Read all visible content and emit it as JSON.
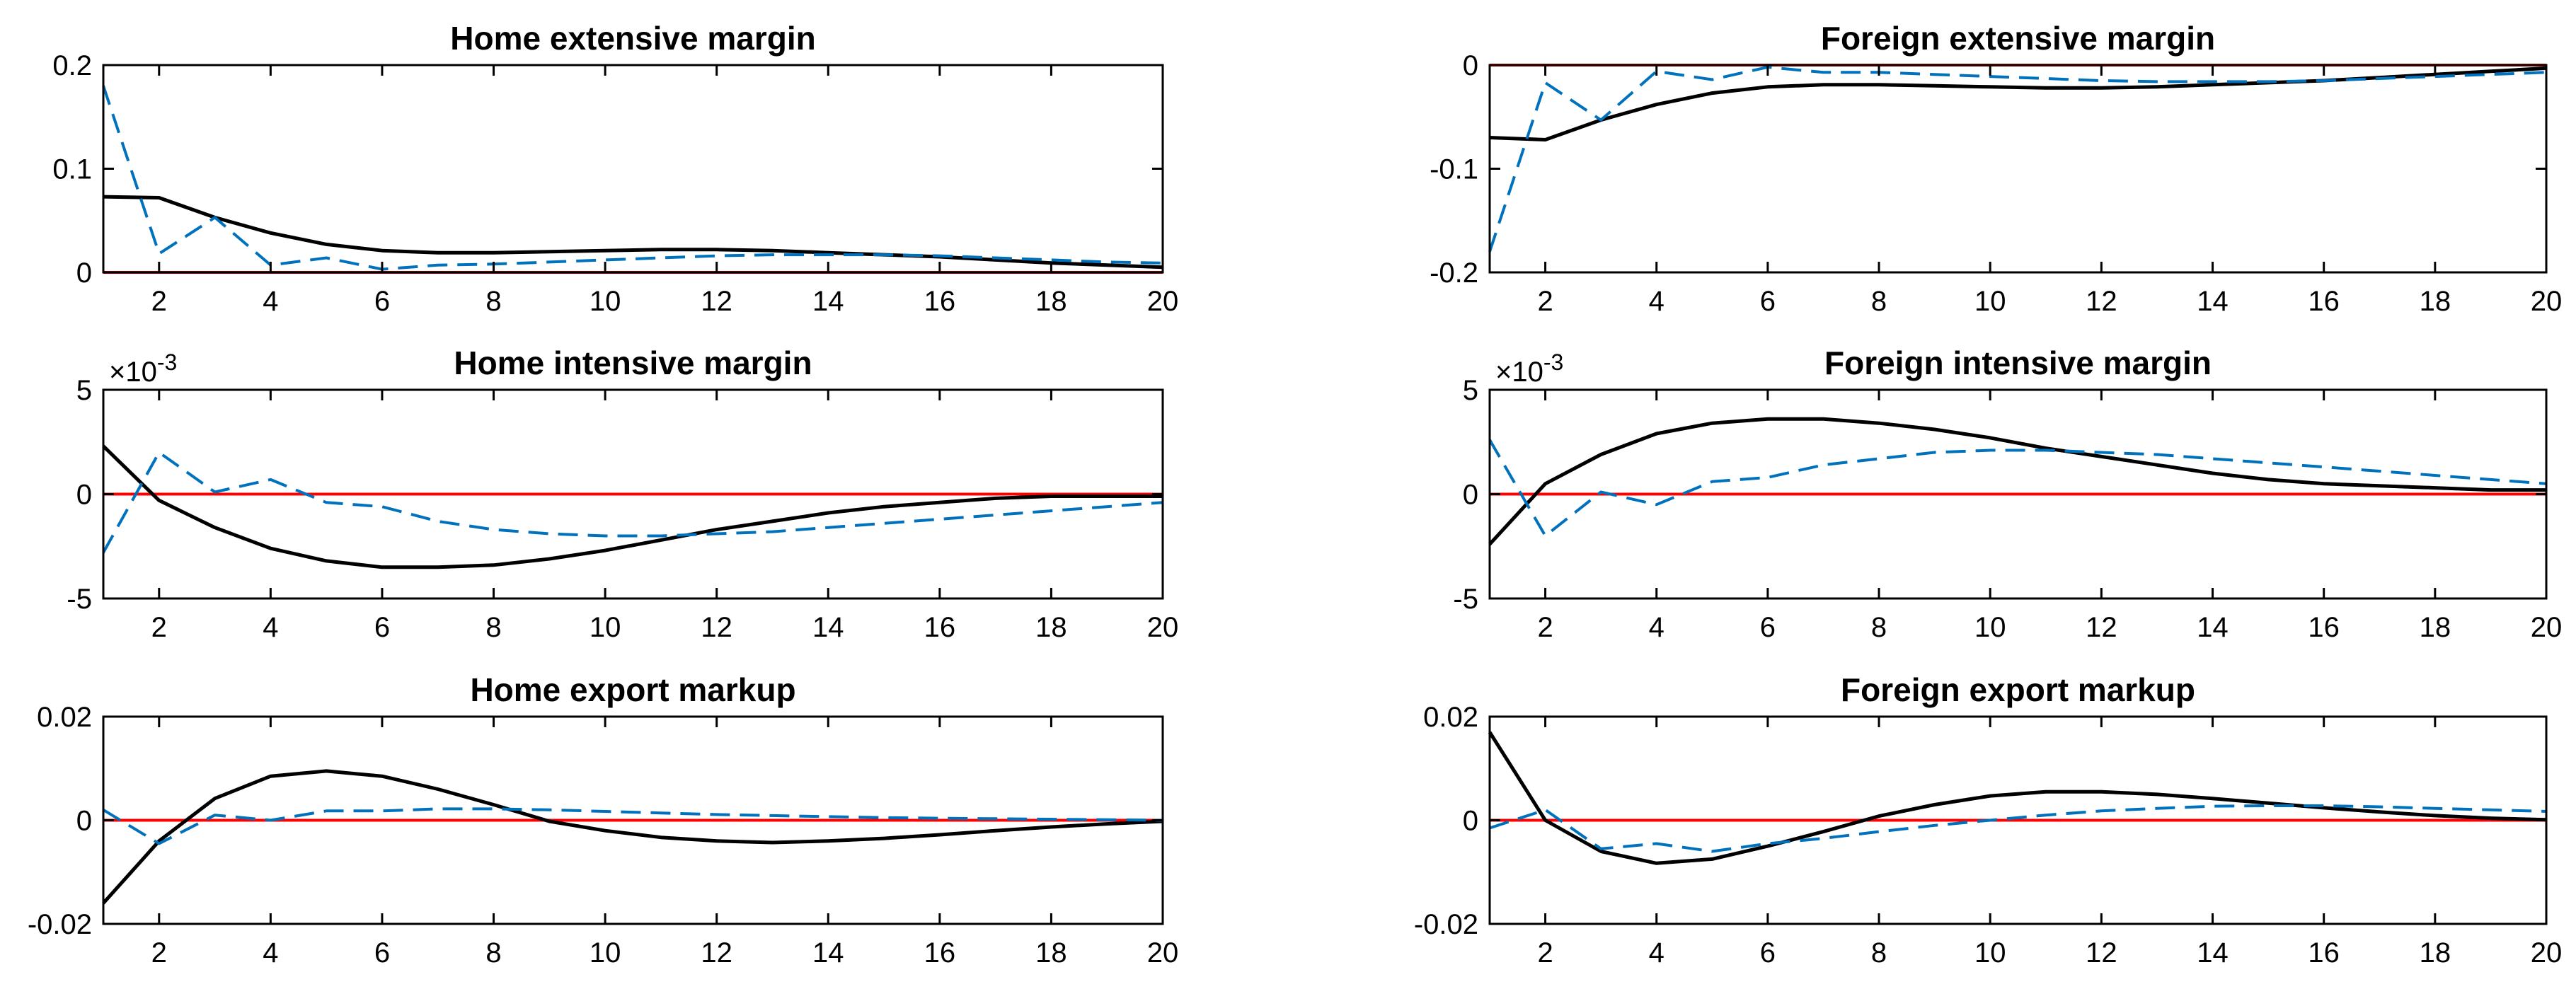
{
  "colors": {
    "black_series": "#000000",
    "blue_series": "#0072bd",
    "zero_line": "#ff0000",
    "axes": "#000000",
    "background": "#ffffff"
  },
  "chart_data": [
    {
      "type": "line",
      "title": "Home extensive margin",
      "xlim": [
        1,
        20
      ],
      "ylim": [
        0,
        0.2
      ],
      "x_ticks": [
        2,
        4,
        6,
        8,
        10,
        12,
        14,
        16,
        18,
        20
      ],
      "x_tick_labels": [
        "2",
        "4",
        "6",
        "8",
        "10",
        "12",
        "14",
        "16",
        "18",
        "20"
      ],
      "y_ticks": [
        0,
        0.1,
        0.2
      ],
      "y_tick_labels": [
        "0",
        "0.1",
        "0.2"
      ],
      "exponent_label": "",
      "zero_line": 0,
      "x": [
        1,
        2,
        3,
        4,
        5,
        6,
        7,
        8,
        9,
        10,
        11,
        12,
        13,
        14,
        15,
        16,
        17,
        18,
        19,
        20
      ],
      "series": [
        {
          "name": "solid",
          "style": "solid",
          "values": [
            0.073,
            0.072,
            0.053,
            0.038,
            0.027,
            0.021,
            0.019,
            0.019,
            0.02,
            0.021,
            0.022,
            0.022,
            0.021,
            0.019,
            0.017,
            0.015,
            0.012,
            0.009,
            0.007,
            0.005
          ]
        },
        {
          "name": "dashed",
          "style": "dashed",
          "values": [
            0.18,
            0.018,
            0.053,
            0.007,
            0.014,
            0.003,
            0.007,
            0.008,
            0.01,
            0.012,
            0.014,
            0.016,
            0.017,
            0.017,
            0.017,
            0.016,
            0.014,
            0.012,
            0.01,
            0.009
          ]
        }
      ]
    },
    {
      "type": "line",
      "title": "Foreign extensive margin",
      "xlim": [
        1,
        20
      ],
      "ylim": [
        -0.2,
        0
      ],
      "x_ticks": [
        2,
        4,
        6,
        8,
        10,
        12,
        14,
        16,
        18,
        20
      ],
      "x_tick_labels": [
        "2",
        "4",
        "6",
        "8",
        "10",
        "12",
        "14",
        "16",
        "18",
        "20"
      ],
      "y_ticks": [
        -0.2,
        -0.1,
        0
      ],
      "y_tick_labels": [
        "-0.2",
        "-0.1",
        "0"
      ],
      "exponent_label": "",
      "zero_line": 0,
      "x": [
        1,
        2,
        3,
        4,
        5,
        6,
        7,
        8,
        9,
        10,
        11,
        12,
        13,
        14,
        15,
        16,
        17,
        18,
        19,
        20
      ],
      "series": [
        {
          "name": "solid",
          "style": "solid",
          "values": [
            -0.07,
            -0.072,
            -0.053,
            -0.038,
            -0.027,
            -0.021,
            -0.019,
            -0.019,
            -0.02,
            -0.021,
            -0.022,
            -0.022,
            -0.021,
            -0.019,
            -0.017,
            -0.015,
            -0.012,
            -0.009,
            -0.006,
            -0.003
          ]
        },
        {
          "name": "dashed",
          "style": "dashed",
          "values": [
            -0.18,
            -0.017,
            -0.053,
            -0.006,
            -0.014,
            -0.002,
            -0.007,
            -0.007,
            -0.009,
            -0.011,
            -0.013,
            -0.015,
            -0.016,
            -0.016,
            -0.016,
            -0.015,
            -0.013,
            -0.011,
            -0.009,
            -0.007
          ]
        }
      ]
    },
    {
      "type": "line",
      "title": "Home intensive margin",
      "xlim": [
        1,
        20
      ],
      "ylim": [
        -5,
        5
      ],
      "x_ticks": [
        2,
        4,
        6,
        8,
        10,
        12,
        14,
        16,
        18,
        20
      ],
      "x_tick_labels": [
        "2",
        "4",
        "6",
        "8",
        "10",
        "12",
        "14",
        "16",
        "18",
        "20"
      ],
      "y_ticks": [
        -5,
        0,
        5
      ],
      "y_tick_labels": [
        "-5",
        "0",
        "5"
      ],
      "exponent_label": "×10",
      "exponent_power": "-3",
      "zero_line": 0,
      "x": [
        1,
        2,
        3,
        4,
        5,
        6,
        7,
        8,
        9,
        10,
        11,
        12,
        13,
        14,
        15,
        16,
        17,
        18,
        19,
        20
      ],
      "series": [
        {
          "name": "solid",
          "style": "solid",
          "values": [
            2.3,
            -0.3,
            -1.6,
            -2.6,
            -3.2,
            -3.5,
            -3.5,
            -3.4,
            -3.1,
            -2.7,
            -2.2,
            -1.7,
            -1.3,
            -0.9,
            -0.6,
            -0.4,
            -0.2,
            -0.1,
            -0.1,
            -0.1
          ]
        },
        {
          "name": "dashed",
          "style": "dashed",
          "values": [
            -2.8,
            2.0,
            0.1,
            0.7,
            -0.4,
            -0.6,
            -1.3,
            -1.7,
            -1.9,
            -2.0,
            -2.0,
            -1.9,
            -1.8,
            -1.6,
            -1.4,
            -1.2,
            -1.0,
            -0.8,
            -0.6,
            -0.4
          ]
        }
      ]
    },
    {
      "type": "line",
      "title": "Foreign intensive margin",
      "xlim": [
        1,
        20
      ],
      "ylim": [
        -5,
        5
      ],
      "x_ticks": [
        2,
        4,
        6,
        8,
        10,
        12,
        14,
        16,
        18,
        20
      ],
      "x_tick_labels": [
        "2",
        "4",
        "6",
        "8",
        "10",
        "12",
        "14",
        "16",
        "18",
        "20"
      ],
      "y_ticks": [
        -5,
        0,
        5
      ],
      "y_tick_labels": [
        "-5",
        "0",
        "5"
      ],
      "exponent_label": "×10",
      "exponent_power": "-3",
      "zero_line": 0,
      "x": [
        1,
        2,
        3,
        4,
        5,
        6,
        7,
        8,
        9,
        10,
        11,
        12,
        13,
        14,
        15,
        16,
        17,
        18,
        19,
        20
      ],
      "series": [
        {
          "name": "solid",
          "style": "solid",
          "values": [
            -2.4,
            0.5,
            1.9,
            2.9,
            3.4,
            3.6,
            3.6,
            3.4,
            3.1,
            2.7,
            2.2,
            1.8,
            1.4,
            1.0,
            0.7,
            0.5,
            0.4,
            0.3,
            0.2,
            0.2
          ]
        },
        {
          "name": "dashed",
          "style": "dashed",
          "values": [
            2.6,
            -2.0,
            0.1,
            -0.5,
            0.6,
            0.8,
            1.4,
            1.7,
            2.0,
            2.1,
            2.1,
            2.0,
            1.9,
            1.7,
            1.5,
            1.3,
            1.1,
            0.9,
            0.7,
            0.5
          ]
        }
      ]
    },
    {
      "type": "line",
      "title": "Home export markup",
      "xlim": [
        1,
        20
      ],
      "ylim": [
        -0.02,
        0.02
      ],
      "x_ticks": [
        2,
        4,
        6,
        8,
        10,
        12,
        14,
        16,
        18,
        20
      ],
      "x_tick_labels": [
        "2",
        "4",
        "6",
        "8",
        "10",
        "12",
        "14",
        "16",
        "18",
        "20"
      ],
      "y_ticks": [
        -0.02,
        0,
        0.02
      ],
      "y_tick_labels": [
        "-0.02",
        "0",
        "0.02"
      ],
      "exponent_label": "",
      "zero_line": 0,
      "x": [
        1,
        2,
        3,
        4,
        5,
        6,
        7,
        8,
        9,
        10,
        11,
        12,
        13,
        14,
        15,
        16,
        17,
        18,
        19,
        20
      ],
      "series": [
        {
          "name": "solid",
          "style": "solid",
          "values": [
            -0.016,
            -0.004,
            0.0042,
            0.0085,
            0.0095,
            0.0085,
            0.006,
            0.003,
            -0.0002,
            -0.002,
            -0.0033,
            -0.004,
            -0.0043,
            -0.004,
            -0.0035,
            -0.0028,
            -0.002,
            -0.0013,
            -0.0007,
            -0.0002
          ]
        },
        {
          "name": "dashed",
          "style": "dashed",
          "values": [
            0.002,
            -0.0045,
            0.001,
            0.0,
            0.0018,
            0.0018,
            0.0022,
            0.0022,
            0.002,
            0.0017,
            0.0014,
            0.0011,
            0.0009,
            0.0007,
            0.0005,
            0.0004,
            0.0003,
            0.0002,
            0.0001,
            0.0
          ]
        }
      ]
    },
    {
      "type": "line",
      "title": "Foreign export markup",
      "xlim": [
        1,
        20
      ],
      "ylim": [
        -0.02,
        0.02
      ],
      "x_ticks": [
        2,
        4,
        6,
        8,
        10,
        12,
        14,
        16,
        18,
        20
      ],
      "x_tick_labels": [
        "2",
        "4",
        "6",
        "8",
        "10",
        "12",
        "14",
        "16",
        "18",
        "20"
      ],
      "y_ticks": [
        -0.02,
        0,
        0.02
      ],
      "y_tick_labels": [
        "-0.02",
        "0",
        "0.02"
      ],
      "exponent_label": "",
      "zero_line": 0,
      "x": [
        1,
        2,
        3,
        4,
        5,
        6,
        7,
        8,
        9,
        10,
        11,
        12,
        13,
        14,
        15,
        16,
        17,
        18,
        19,
        20
      ],
      "series": [
        {
          "name": "solid",
          "style": "solid",
          "values": [
            0.017,
            0.0,
            -0.006,
            -0.0083,
            -0.0075,
            -0.005,
            -0.0022,
            0.0008,
            0.003,
            0.0047,
            0.0055,
            0.0055,
            0.005,
            0.0042,
            0.0033,
            0.0024,
            0.0016,
            0.0009,
            0.0004,
            0.0001
          ]
        },
        {
          "name": "dashed",
          "style": "dashed",
          "values": [
            -0.0015,
            0.002,
            -0.0055,
            -0.0045,
            -0.006,
            -0.0045,
            -0.0035,
            -0.0022,
            -0.001,
            0.0,
            0.001,
            0.0018,
            0.0023,
            0.0027,
            0.0028,
            0.0028,
            0.0026,
            0.0023,
            0.002,
            0.0017
          ]
        }
      ]
    }
  ]
}
